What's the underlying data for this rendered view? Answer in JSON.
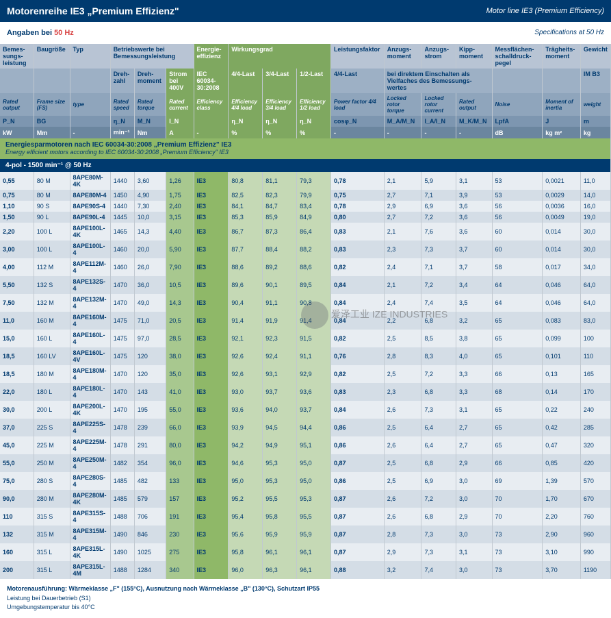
{
  "header": {
    "title": "Motorenreihe IE3 „Premium Effizienz\"",
    "sub": "Motor line IE3 (Premium Efficiency)"
  },
  "freq": {
    "l1": "Angaben bei ",
    "hz": "50 Hz",
    "r": "Specifications at 50 Hz"
  },
  "h1": {
    "c0": "Bemes-sungs-leistung",
    "c1": "Baugröße",
    "c2": "Typ",
    "c3": "Betriebswerte bei Bemessungsleistung",
    "c4": "Energie-effizienz",
    "c5": "Wirkungsgrad",
    "c6": "Leistungsfaktor",
    "c7": "Anzugs-moment",
    "c8": "Anzugs-strom",
    "c9": "Kipp-moment",
    "c10": "Messflächen-schalldruck-pegel",
    "c11": "Trägheits-moment",
    "c12": "Gewicht"
  },
  "h2": {
    "c3a": "Dreh-zahl",
    "c3b": "Dreh-moment",
    "c3c": "Strom bei 400V",
    "c4": "IEC 60034-30:2008",
    "c5a": "4/4-Last",
    "c5b": "3/4-Last",
    "c5c": "1/2-Last",
    "c6": "4/4-Last",
    "c7": "bei direktem Einschalten als Vielfaches des Bemessungs-wertes",
    "c12": "IM B3"
  },
  "h3": {
    "c0": "Rated output",
    "c1": "Frame size (FS)",
    "c2": "type",
    "c3a": "Rated speed",
    "c3b": "Rated torque",
    "c3c": "Rated current",
    "c4": "Efficiency class",
    "c5a": "Efficiency 4/4 load",
    "c5b": "Efficiency 3/4 load",
    "c5c": "Efficiency 1/2 load",
    "c6": "Power factor 4/4 load",
    "c7": "Locked rotor torque",
    "c8": "Locked rotor current",
    "c9": "Rated output",
    "c10": "Noise",
    "c11": "Moment of inertia",
    "c12": "weight"
  },
  "h4": {
    "c0": "P_N",
    "c1": "BG",
    "c3a": "η_N",
    "c3b": "M_N",
    "c3c": "I_N",
    "c5a": "η_N",
    "c5b": "η_N",
    "c5c": "η_N",
    "c6": "cosφ_N",
    "c7": "M_A/M_N",
    "c8": "I_A/I_N",
    "c9": "M_K/M_N",
    "c10": "LpfA",
    "c11": "J",
    "c12": "m"
  },
  "h5": {
    "c0": "kW",
    "c1": "Mm",
    "c2": "-",
    "c3a": "min⁻¹",
    "c3b": "Nm",
    "c3c": "A",
    "c4": "-",
    "c5a": "%",
    "c5b": "%",
    "c5c": "%",
    "c6": "-",
    "c7": "-",
    "c8": "-",
    "c9": "-",
    "c10": "dB",
    "c11": "kg m²",
    "c12": "kg"
  },
  "sect": {
    "de": "Energiesparmotoren nach IEC 60034-30:2008 „Premium Effizienz\" IE3",
    "en": "Energy efficient motors according to IEC 60034-30:2008 „Premium Efficiency\" IE3"
  },
  "pole": "4-pol - 1500 min⁻¹ @ 50 Hz",
  "rows": [
    {
      "kw": "0,55",
      "bg": "80 M",
      "typ": "8APE80M-4K",
      "sp": "1440",
      "tq": "3,60",
      "cur": "1,26",
      "ec": "IE3",
      "e1": "80,8",
      "e2": "81,1",
      "e3": "79,3",
      "pf": "0,78",
      "la": "2,1",
      "lc": "5,9",
      "kp": "3,1",
      "db": "53",
      "j": "0,0021",
      "kg": "11,0"
    },
    {
      "kw": "0,75",
      "bg": "80 M",
      "typ": "8APE80M-4",
      "sp": "1450",
      "tq": "4,90",
      "cur": "1,75",
      "ec": "IE3",
      "e1": "82,5",
      "e2": "82,3",
      "e3": "79,9",
      "pf": "0,75",
      "la": "2,7",
      "lc": "7,1",
      "kp": "3,9",
      "db": "53",
      "j": "0,0029",
      "kg": "14,0"
    },
    {
      "kw": "1,10",
      "bg": "90 S",
      "typ": "8APE90S-4",
      "sp": "1440",
      "tq": "7,30",
      "cur": "2,40",
      "ec": "IE3",
      "e1": "84,1",
      "e2": "84,7",
      "e3": "83,4",
      "pf": "0,78",
      "la": "2,9",
      "lc": "6,9",
      "kp": "3,6",
      "db": "56",
      "j": "0,0036",
      "kg": "16,0"
    },
    {
      "kw": "1,50",
      "bg": "90 L",
      "typ": "8APE90L-4",
      "sp": "1445",
      "tq": "10,0",
      "cur": "3,15",
      "ec": "IE3",
      "e1": "85,3",
      "e2": "85,9",
      "e3": "84,9",
      "pf": "0,80",
      "la": "2,7",
      "lc": "7,2",
      "kp": "3,6",
      "db": "56",
      "j": "0,0049",
      "kg": "19,0"
    },
    {
      "kw": "2,20",
      "bg": "100 L",
      "typ": "8APE100L-4K",
      "sp": "1465",
      "tq": "14,3",
      "cur": "4,40",
      "ec": "IE3",
      "e1": "86,7",
      "e2": "87,3",
      "e3": "86,4",
      "pf": "0,83",
      "la": "2,1",
      "lc": "7,6",
      "kp": "3,6",
      "db": "60",
      "j": "0,014",
      "kg": "30,0"
    },
    {
      "kw": "3,00",
      "bg": "100 L",
      "typ": "8APE100L-4",
      "sp": "1460",
      "tq": "20,0",
      "cur": "5,90",
      "ec": "IE3",
      "e1": "87,7",
      "e2": "88,4",
      "e3": "88,2",
      "pf": "0,83",
      "la": "2,3",
      "lc": "7,3",
      "kp": "3,7",
      "db": "60",
      "j": "0,014",
      "kg": "30,0"
    },
    {
      "kw": "4,00",
      "bg": "112 M",
      "typ": "8APE112M-4",
      "sp": "1460",
      "tq": "26,0",
      "cur": "7,90",
      "ec": "IE3",
      "e1": "88,6",
      "e2": "89,2",
      "e3": "88,6",
      "pf": "0,82",
      "la": "2,4",
      "lc": "7,1",
      "kp": "3,7",
      "db": "58",
      "j": "0,017",
      "kg": "34,0"
    },
    {
      "kw": "5,50",
      "bg": "132 S",
      "typ": "8APE132S-4",
      "sp": "1470",
      "tq": "36,0",
      "cur": "10,5",
      "ec": "IE3",
      "e1": "89,6",
      "e2": "90,1",
      "e3": "89,5",
      "pf": "0,84",
      "la": "2,1",
      "lc": "7,2",
      "kp": "3,4",
      "db": "64",
      "j": "0,046",
      "kg": "64,0"
    },
    {
      "kw": "7,50",
      "bg": "132 M",
      "typ": "8APE132M-4",
      "sp": "1470",
      "tq": "49,0",
      "cur": "14,3",
      "ec": "IE3",
      "e1": "90,4",
      "e2": "91,1",
      "e3": "90,8",
      "pf": "0,84",
      "la": "2,4",
      "lc": "7,4",
      "kp": "3,5",
      "db": "64",
      "j": "0,046",
      "kg": "64,0"
    },
    {
      "kw": "11,0",
      "bg": "160 M",
      "typ": "8APE160M-4",
      "sp": "1475",
      "tq": "71,0",
      "cur": "20,5",
      "ec": "IE3",
      "e1": "91,4",
      "e2": "91,9",
      "e3": "91,4",
      "pf": "0,84",
      "la": "2,2",
      "lc": "6,8",
      "kp": "3,2",
      "db": "65",
      "j": "0,083",
      "kg": "83,0"
    },
    {
      "kw": "15,0",
      "bg": "160 L",
      "typ": "8APE160L-4",
      "sp": "1475",
      "tq": "97,0",
      "cur": "28,5",
      "ec": "IE3",
      "e1": "92,1",
      "e2": "92,3",
      "e3": "91,5",
      "pf": "0,82",
      "la": "2,5",
      "lc": "8,5",
      "kp": "3,8",
      "db": "65",
      "j": "0,099",
      "kg": "100"
    },
    {
      "kw": "18,5",
      "bg": "160 LV",
      "typ": "8APE160L-4V",
      "sp": "1475",
      "tq": "120",
      "cur": "38,0",
      "ec": "IE3",
      "e1": "92,6",
      "e2": "92,4",
      "e3": "91,1",
      "pf": "0,76",
      "la": "2,8",
      "lc": "8,3",
      "kp": "4,0",
      "db": "65",
      "j": "0,101",
      "kg": "110"
    },
    {
      "kw": "18,5",
      "bg": "180 M",
      "typ": "8APE180M-4",
      "sp": "1470",
      "tq": "120",
      "cur": "35,0",
      "ec": "IE3",
      "e1": "92,6",
      "e2": "93,1",
      "e3": "92,9",
      "pf": "0,82",
      "la": "2,5",
      "lc": "7,2",
      "kp": "3,3",
      "db": "66",
      "j": "0,13",
      "kg": "165"
    },
    {
      "kw": "22,0",
      "bg": "180 L",
      "typ": "8APE180L-4",
      "sp": "1470",
      "tq": "143",
      "cur": "41,0",
      "ec": "IE3",
      "e1": "93,0",
      "e2": "93,7",
      "e3": "93,6",
      "pf": "0,83",
      "la": "2,3",
      "lc": "6,8",
      "kp": "3,3",
      "db": "68",
      "j": "0,14",
      "kg": "170"
    },
    {
      "kw": "30,0",
      "bg": "200 L",
      "typ": "8APE200L-4K",
      "sp": "1470",
      "tq": "195",
      "cur": "55,0",
      "ec": "IE3",
      "e1": "93,6",
      "e2": "94,0",
      "e3": "93,7",
      "pf": "0,84",
      "la": "2,6",
      "lc": "7,3",
      "kp": "3,1",
      "db": "65",
      "j": "0,22",
      "kg": "240"
    },
    {
      "kw": "37,0",
      "bg": "225 S",
      "typ": "8APE225S-4",
      "sp": "1478",
      "tq": "239",
      "cur": "66,0",
      "ec": "IE3",
      "e1": "93,9",
      "e2": "94,5",
      "e3": "94,4",
      "pf": "0,86",
      "la": "2,5",
      "lc": "6,4",
      "kp": "2,7",
      "db": "65",
      "j": "0,42",
      "kg": "285"
    },
    {
      "kw": "45,0",
      "bg": "225 M",
      "typ": "8APE225M-4",
      "sp": "1478",
      "tq": "291",
      "cur": "80,0",
      "ec": "IE3",
      "e1": "94,2",
      "e2": "94,9",
      "e3": "95,1",
      "pf": "0,86",
      "la": "2,6",
      "lc": "6,4",
      "kp": "2,7",
      "db": "65",
      "j": "0,47",
      "kg": "320"
    },
    {
      "kw": "55,0",
      "bg": "250 M",
      "typ": "8APE250M-4",
      "sp": "1482",
      "tq": "354",
      "cur": "96,0",
      "ec": "IE3",
      "e1": "94,6",
      "e2": "95,3",
      "e3": "95,0",
      "pf": "0,87",
      "la": "2,5",
      "lc": "6,8",
      "kp": "2,9",
      "db": "66",
      "j": "0,85",
      "kg": "420"
    },
    {
      "kw": "75,0",
      "bg": "280 S",
      "typ": "8APE280S-4",
      "sp": "1485",
      "tq": "482",
      "cur": "133",
      "ec": "IE3",
      "e1": "95,0",
      "e2": "95,3",
      "e3": "95,0",
      "pf": "0,86",
      "la": "2,5",
      "lc": "6,9",
      "kp": "3,0",
      "db": "69",
      "j": "1,39",
      "kg": "570"
    },
    {
      "kw": "90,0",
      "bg": "280 M",
      "typ": "8APE280M-4K",
      "sp": "1485",
      "tq": "579",
      "cur": "157",
      "ec": "IE3",
      "e1": "95,2",
      "e2": "95,5",
      "e3": "95,3",
      "pf": "0,87",
      "la": "2,6",
      "lc": "7,2",
      "kp": "3,0",
      "db": "70",
      "j": "1,70",
      "kg": "670"
    },
    {
      "kw": "110",
      "bg": "315 S",
      "typ": "8APE315S-4",
      "sp": "1488",
      "tq": "706",
      "cur": "191",
      "ec": "IE3",
      "e1": "95,4",
      "e2": "95,8",
      "e3": "95,5",
      "pf": "0,87",
      "la": "2,6",
      "lc": "6,8",
      "kp": "2,9",
      "db": "70",
      "j": "2,20",
      "kg": "760"
    },
    {
      "kw": "132",
      "bg": "315 M",
      "typ": "8APE315M-4",
      "sp": "1490",
      "tq": "846",
      "cur": "230",
      "ec": "IE3",
      "e1": "95,6",
      "e2": "95,9",
      "e3": "95,9",
      "pf": "0,87",
      "la": "2,8",
      "lc": "7,3",
      "kp": "3,0",
      "db": "73",
      "j": "2,90",
      "kg": "960"
    },
    {
      "kw": "160",
      "bg": "315 L",
      "typ": "8APE315L-4K",
      "sp": "1490",
      "tq": "1025",
      "cur": "275",
      "ec": "IE3",
      "e1": "95,8",
      "e2": "96,1",
      "e3": "96,1",
      "pf": "0,87",
      "la": "2,9",
      "lc": "7,3",
      "kp": "3,1",
      "db": "73",
      "j": "3,10",
      "kg": "990"
    },
    {
      "kw": "200",
      "bg": "315 L",
      "typ": "8APE315L-4M",
      "sp": "1488",
      "tq": "1284",
      "cur": "340",
      "ec": "IE3",
      "e1": "96,0",
      "e2": "96,3",
      "e3": "96,1",
      "pf": "0,88",
      "la": "3,2",
      "lc": "7,4",
      "kp": "3,0",
      "db": "73",
      "j": "3,70",
      "kg": "1190"
    }
  ],
  "foot": {
    "l1": "Motorenausführung: Wärmeklasse „F\" (155°C), Ausnutzung nach Wärmeklasse „B\" (130°C), Schutzart IP55",
    "l2": "Leistung bei Dauerbetrieb (S1)",
    "l3": "Umgebungstemperatur bis 40°C"
  },
  "wm": "爱泽工业 IZE INDUSTRIES"
}
